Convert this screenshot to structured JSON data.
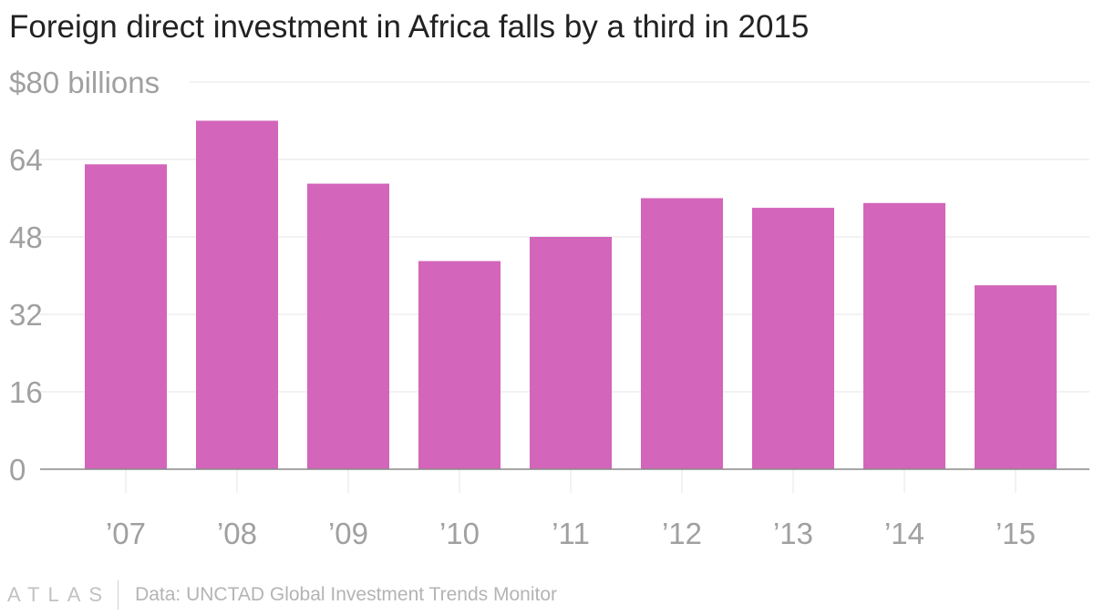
{
  "chart_data": {
    "type": "bar",
    "title": "Foreign direct investment in Africa falls by a third in 2015",
    "categories": [
      "’07",
      "’08",
      "’09",
      "’10",
      "’11",
      "’12",
      "’13",
      "’14",
      "’15"
    ],
    "values": [
      63,
      72,
      59,
      43,
      48,
      56,
      54,
      55,
      38
    ],
    "ylim": [
      0,
      80
    ],
    "yticks": [
      0,
      16,
      32,
      48,
      64,
      80
    ],
    "ytick_labels": [
      "0",
      "16",
      "32",
      "48",
      "64",
      "$80 billions"
    ],
    "xlabel": "",
    "ylabel": "",
    "bar_color": "#d365ba",
    "grid": true
  },
  "footer": {
    "logo": "ATLAS",
    "source": "Data: UNCTAD Global Investment Trends Monitor"
  },
  "colors": {
    "title": "#222222",
    "tick": "#a0a0a0",
    "grid": "#e4e4e4",
    "axis": "#888888"
  }
}
